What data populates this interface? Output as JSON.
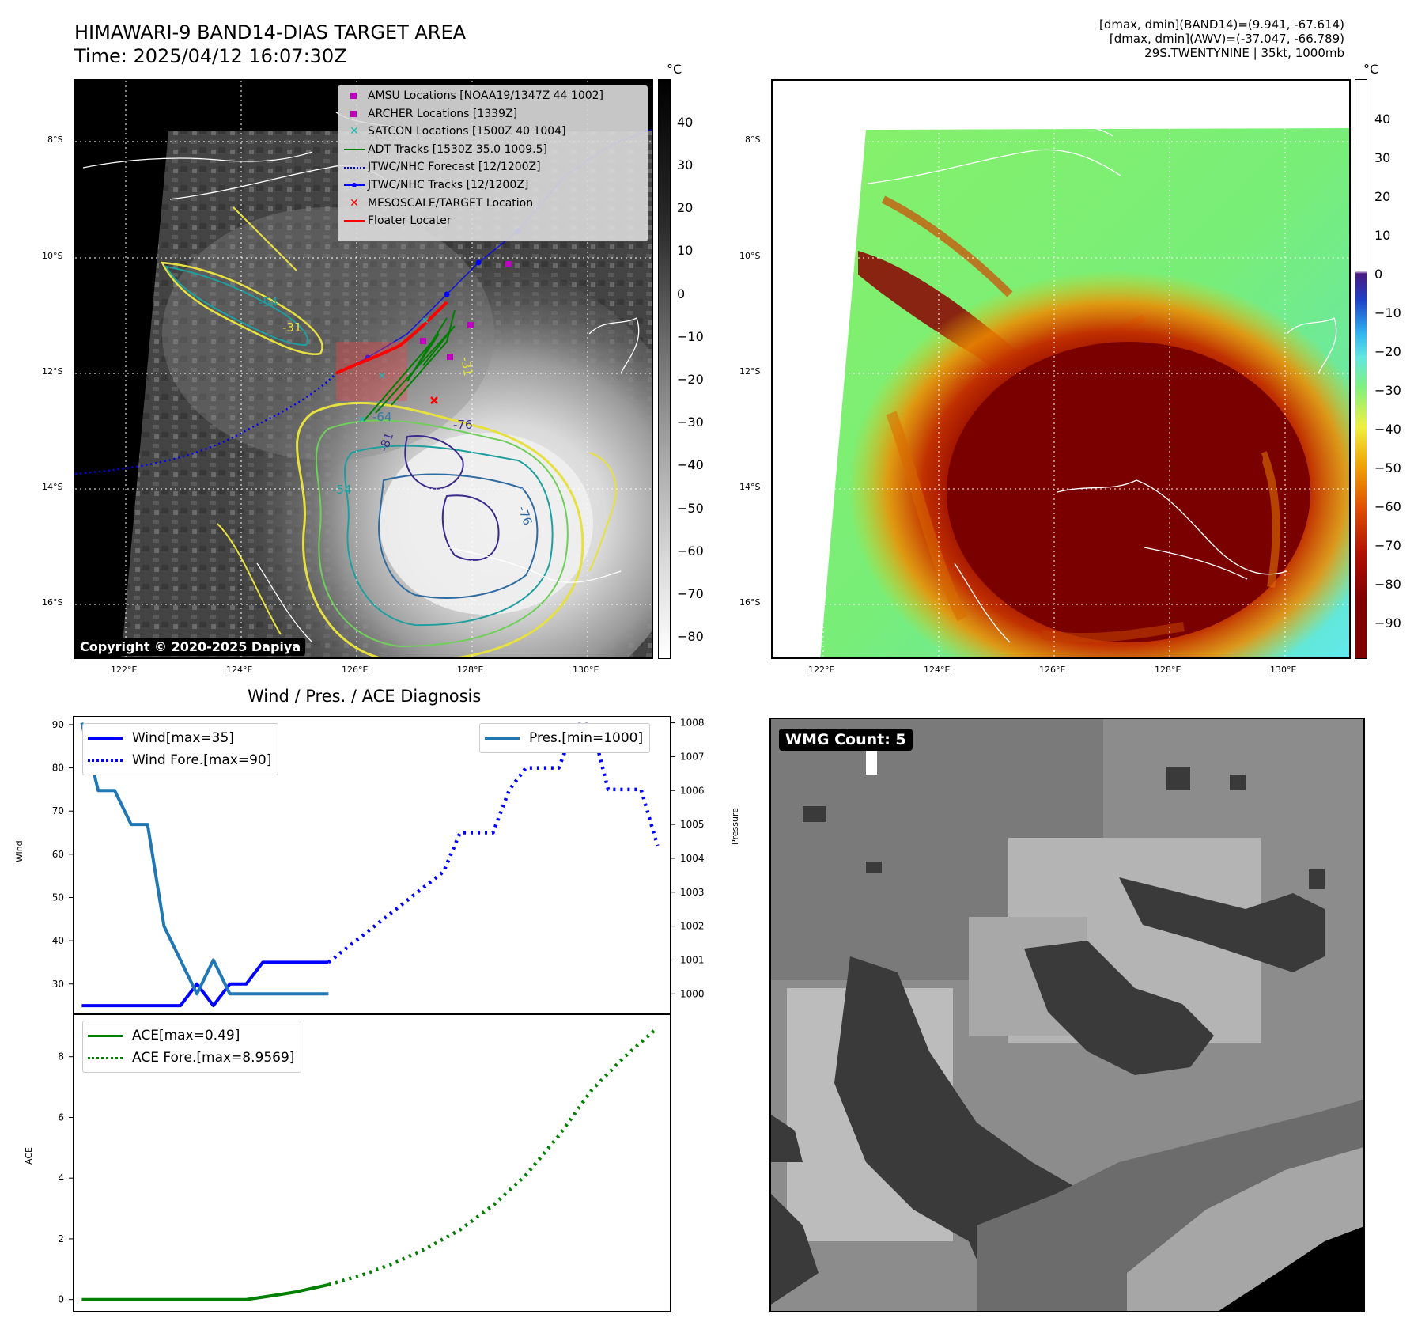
{
  "header": {
    "title": "HIMAWARI-9 BAND14-DIAS TARGET AREA",
    "time": "Time: 2025/04/12 16:07:30Z",
    "info_line1": "[dmax, dmin](BAND14)=(9.941, -67.614)",
    "info_line2": "[dmax, dmin](AWV)=(-37.047, -66.789)",
    "info_line3": "29S.TWENTYNINE | 35kt, 1000mb"
  },
  "map": {
    "lat_labels": [
      "8°S",
      "10°S",
      "12°S",
      "14°S",
      "16°S"
    ],
    "lon_labels": [
      "122°E",
      "124°E",
      "126°E",
      "128°E",
      "130°E"
    ],
    "copyright": "Copyright © 2020-2025 Dapiya",
    "contour_labels": [
      "-54",
      "-31",
      "-31",
      "-64",
      "-76",
      "-81",
      "-54",
      "-76"
    ],
    "legend": [
      {
        "label": "AMSU Locations [NOAA19/1347Z 44 1002]",
        "symbol": "square",
        "color": "#c000c0"
      },
      {
        "label": "ARCHER Locations [1339Z]",
        "symbol": "square",
        "color": "#c000c0"
      },
      {
        "label": "SATCON Locations [1500Z 40 1004]",
        "symbol": "x",
        "color": "#1fb5b5"
      },
      {
        "label": "ADT Tracks [1530Z 35.0 1009.5]",
        "symbol": "line",
        "color": "#008000"
      },
      {
        "label": "JTWC/NHC Forecast [12/1200Z]",
        "symbol": "dotted",
        "color": "#0000ff"
      },
      {
        "label": "JTWC/NHC Tracks [12/1200Z]",
        "symbol": "line-dot",
        "color": "#0000ff"
      },
      {
        "label": "MESOSCALE/TARGET Location",
        "symbol": "x",
        "color": "#ff0000"
      },
      {
        "label": "Floater Locater",
        "symbol": "line",
        "color": "#ff0000"
      }
    ]
  },
  "colorbar_left": {
    "unit": "°C",
    "labels": [
      "40",
      "30",
      "20",
      "10",
      "0",
      "−10",
      "−20",
      "−30",
      "−40",
      "−50",
      "−60",
      "−70",
      "−80"
    ]
  },
  "colorbar_right": {
    "unit": "°C",
    "labels": [
      "40",
      "30",
      "20",
      "10",
      "0",
      "−10",
      "−20",
      "−30",
      "−40",
      "−50",
      "−60",
      "−70",
      "−80",
      "−90"
    ]
  },
  "wmg": {
    "label": "WMG Count: 5"
  },
  "chart_data": [
    {
      "type": "line",
      "title": "Wind / Pres. / ACE Diagnosis",
      "xlabel": "",
      "ylabel": "Wind",
      "ylabel_right": "Pressure",
      "ylim": [
        23,
        92
      ],
      "ylim_right": [
        999.4,
        1008.2
      ],
      "yticks": [
        30,
        40,
        50,
        60,
        70,
        80,
        90
      ],
      "yticks_right": [
        1000,
        1001,
        1002,
        1003,
        1004,
        1005,
        1006,
        1007,
        1008
      ],
      "legend_left": [
        "Wind[max=35]",
        "Wind Fore.[max=90]"
      ],
      "legend_right": [
        "Pres.[min=1000]"
      ],
      "series": [
        {
          "name": "Wind[max=35]",
          "style": "solid",
          "color": "#0000ff",
          "axis": "left",
          "x": [
            0,
            1,
            2,
            3,
            4,
            5,
            6,
            7,
            8,
            9,
            10,
            11,
            12,
            13,
            14,
            15
          ],
          "y": [
            25,
            25,
            25,
            25,
            25,
            25,
            25,
            30,
            25,
            30,
            30,
            35,
            35,
            35,
            35,
            35
          ]
        },
        {
          "name": "Wind Fore.[max=90]",
          "style": "dotted",
          "color": "#0000ff",
          "axis": "left",
          "x": [
            15,
            16,
            17,
            18,
            19,
            20,
            21,
            22,
            23,
            24,
            25,
            26,
            27,
            28,
            29,
            30,
            31,
            32,
            33,
            34,
            35
          ],
          "y": [
            35,
            38,
            41,
            44,
            47,
            50,
            53,
            56,
            65,
            65,
            65,
            75,
            80,
            80,
            80,
            90,
            90,
            75,
            75,
            75,
            62
          ]
        },
        {
          "name": "Pres.[min=1000]",
          "style": "solid",
          "color": "#1f77b4",
          "axis": "right",
          "x": [
            0,
            1,
            2,
            3,
            4,
            5,
            6,
            7,
            8,
            9,
            10,
            11,
            12,
            13,
            14,
            15
          ],
          "y": [
            1008,
            1006,
            1006,
            1005,
            1005,
            1002,
            1001,
            1000,
            1001,
            1000,
            1000,
            1000,
            1000,
            1000,
            1000,
            1000
          ]
        }
      ]
    },
    {
      "type": "line",
      "xlabel": "",
      "ylabel": "ACE",
      "ylim": [
        -0.4,
        9.4
      ],
      "yticks": [
        0,
        2,
        4,
        6,
        8
      ],
      "legend": [
        "ACE[max=0.49]",
        "ACE Fore.[max=8.9569]"
      ],
      "series": [
        {
          "name": "ACE[max=0.49]",
          "style": "solid",
          "color": "#008000",
          "x": [
            0,
            5,
            10,
            11,
            12,
            13,
            14,
            15
          ],
          "y": [
            0,
            0,
            0,
            0.08,
            0.16,
            0.25,
            0.37,
            0.49
          ]
        },
        {
          "name": "ACE Fore.[max=8.9569]",
          "style": "dotted",
          "color": "#008000",
          "x": [
            15,
            17,
            19,
            21,
            23,
            25,
            27,
            29,
            31,
            33,
            35
          ],
          "y": [
            0.49,
            0.8,
            1.2,
            1.7,
            2.3,
            3.1,
            4.1,
            5.4,
            6.9,
            8.0,
            8.9569
          ]
        }
      ]
    }
  ]
}
